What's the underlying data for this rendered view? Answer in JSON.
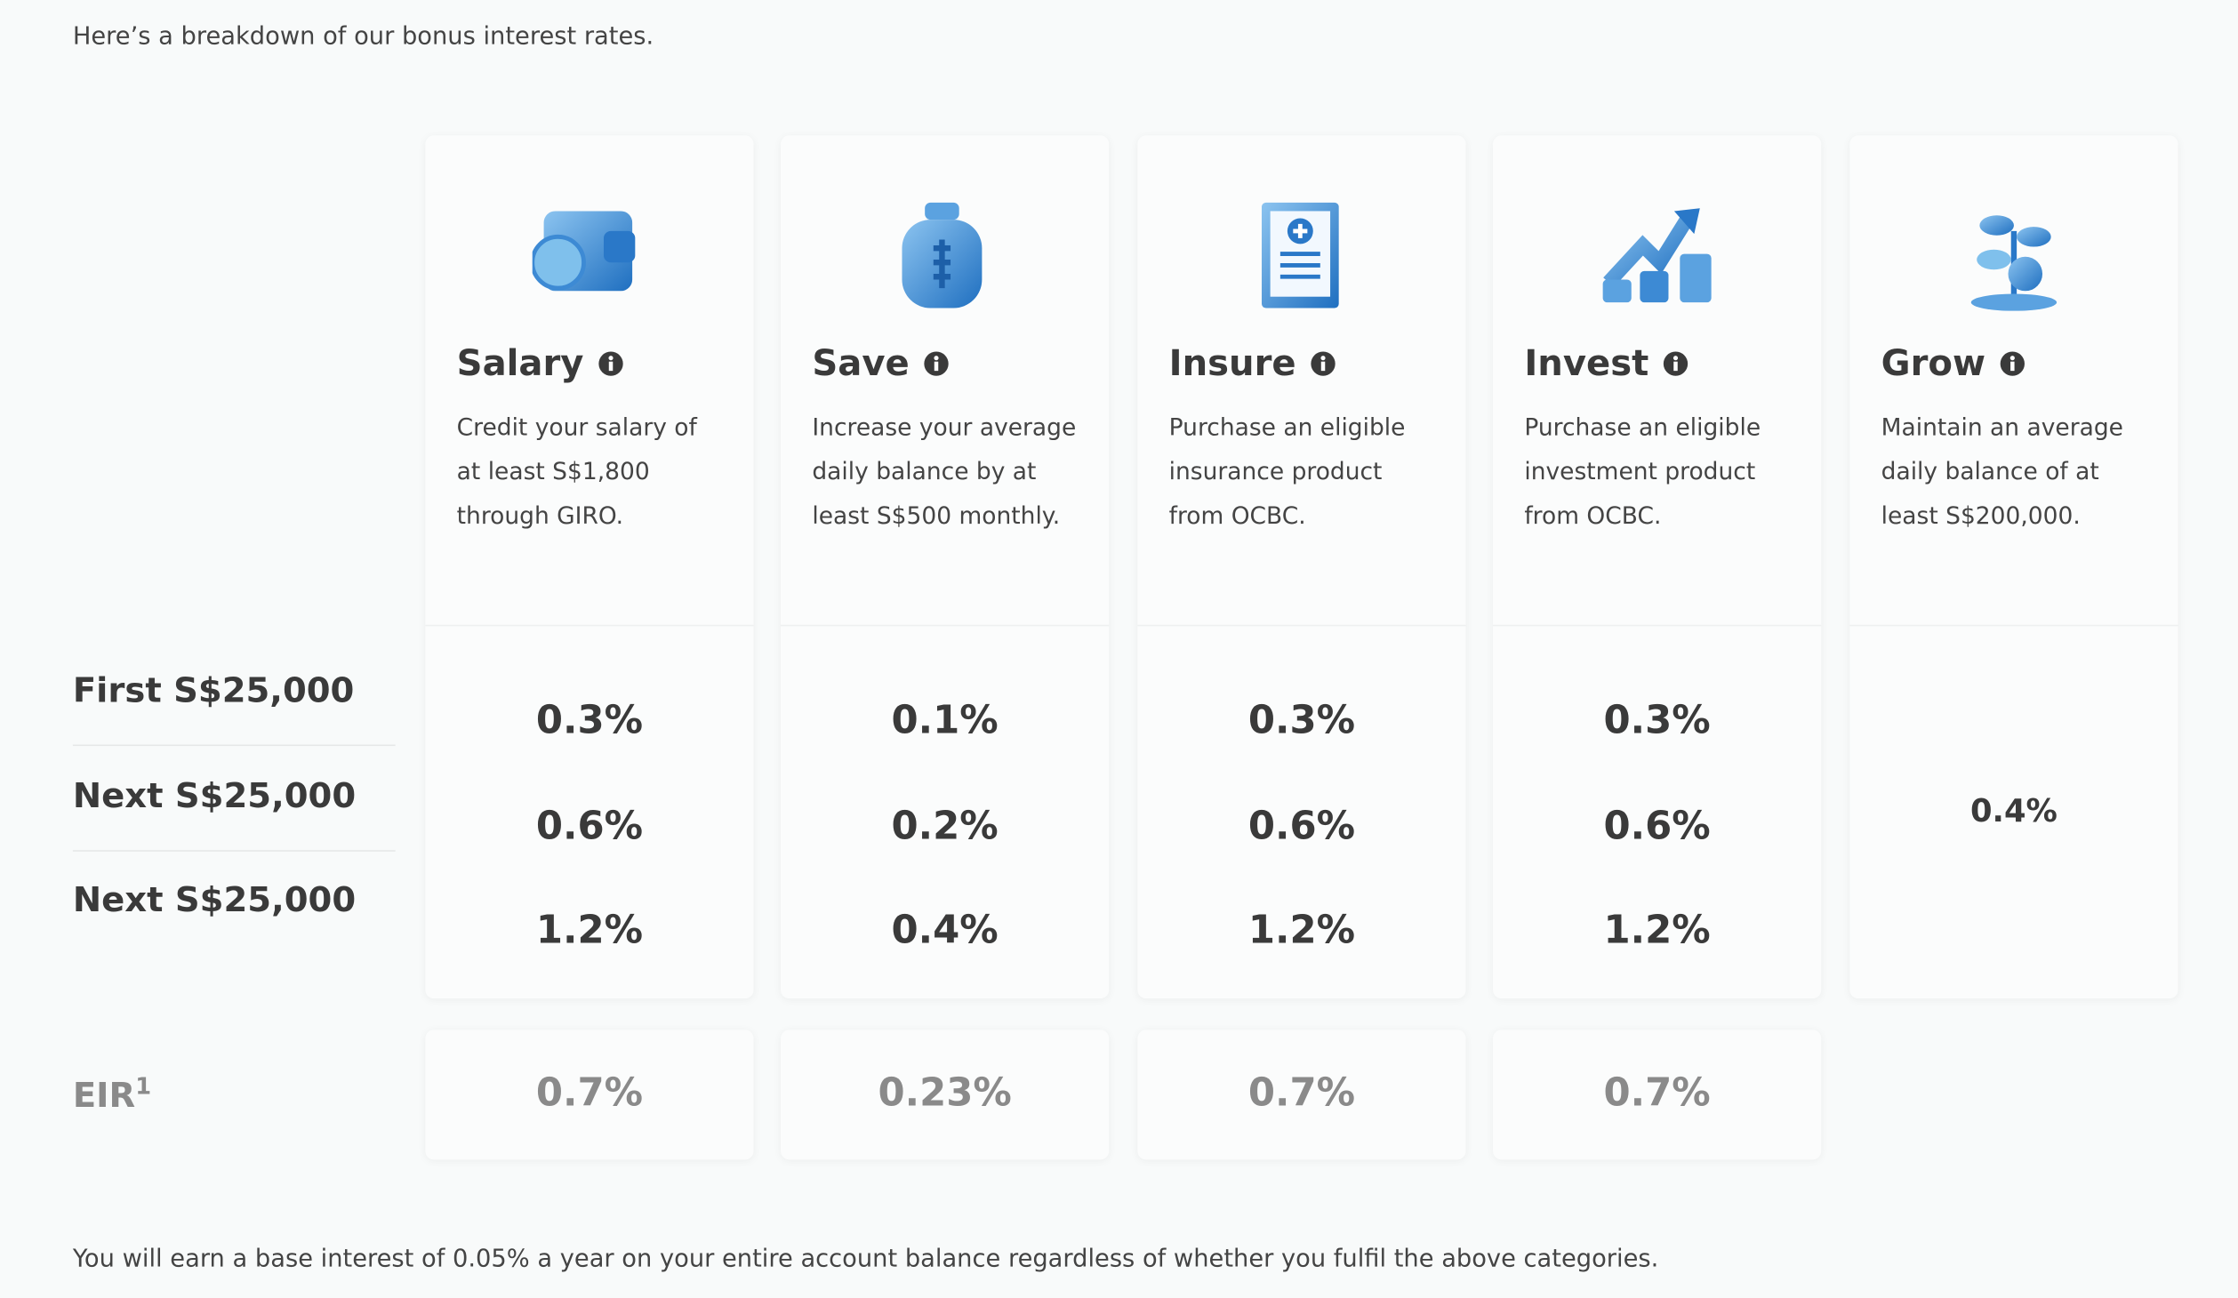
{
  "intro": "Here’s a breakdown of our bonus interest rates.",
  "tiers": [
    "First S$25,000",
    "Next S$25,000",
    "Next S$25,000"
  ],
  "eir_label": "EIR",
  "eir_sup": "1",
  "categories": [
    {
      "name": "Salary",
      "description": "Credit your salary of at least S$1,800 through GIRO.",
      "rates": [
        "0.3%",
        "0.6%",
        "1.2%"
      ],
      "eir": "0.7%"
    },
    {
      "name": "Save",
      "description": "Increase your average daily balance by at least S$500 monthly.",
      "rates": [
        "0.1%",
        "0.2%",
        "0.4%"
      ],
      "eir": "0.23%"
    },
    {
      "name": "Insure",
      "description": "Purchase an eligible insurance product from OCBC.",
      "rates": [
        "0.3%",
        "0.6%",
        "1.2%"
      ],
      "eir": "0.7%"
    },
    {
      "name": "Invest",
      "description": "Purchase an eligible investment product from OCBC.",
      "rates": [
        "0.3%",
        "0.6%",
        "1.2%"
      ],
      "eir": "0.7%"
    },
    {
      "name": "Grow",
      "description": "Maintain an average daily balance of at least S$200,000.",
      "rate": "0.4%"
    }
  ],
  "footnote": "You will earn a base interest of 0.05% a year on your entire account balance regardless of whether you fulfil the above categories."
}
